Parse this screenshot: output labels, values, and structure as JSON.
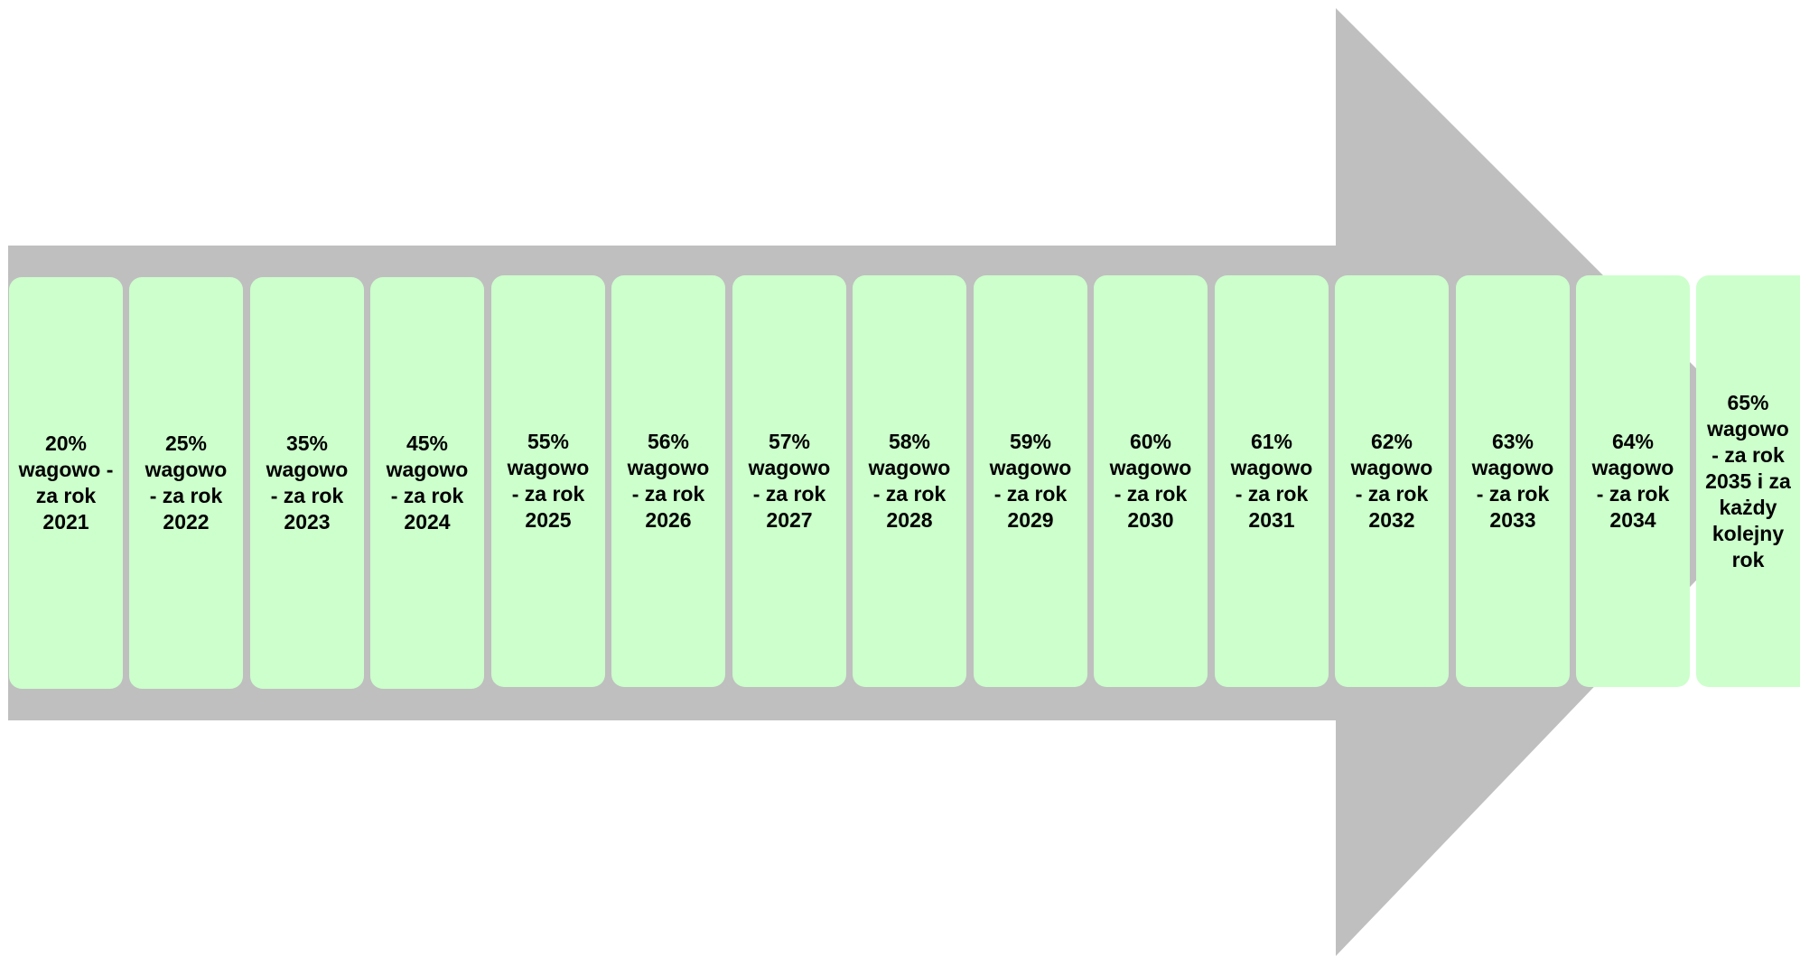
{
  "colors": {
    "arrow": "#bfbfbf",
    "box": "#ccffcc",
    "text": "#000000"
  },
  "steps": [
    {
      "label": "20%\nwagowo -\nza rok\n2021"
    },
    {
      "label": "25%\nwagowo\n- za rok\n2022"
    },
    {
      "label": "35%\nwagowo\n- za rok\n2023"
    },
    {
      "label": "45%\nwagowo\n- za rok\n2024"
    },
    {
      "label": "55%\nwagowo\n- za rok\n2025"
    },
    {
      "label": "56%\nwagowo\n- za rok\n2026"
    },
    {
      "label": "57%\nwagowo\n- za rok\n2027"
    },
    {
      "label": "58%\nwagowo\n- za rok\n2028"
    },
    {
      "label": "59%\nwagowo\n- za rok\n2029"
    },
    {
      "label": "60%\nwagowo\n- za rok\n2030"
    },
    {
      "label": "61%\nwagowo\n- za rok\n2031"
    },
    {
      "label": "62%\nwagowo\n- za rok\n2032"
    },
    {
      "label": "63%\nwagowo\n- za rok\n2033"
    },
    {
      "label": "64%\nwagowo\n- za rok\n2034"
    },
    {
      "label": "65%\nwagowo\n- za rok\n2035 i za\nkażdy\nkolejny\nrok"
    }
  ]
}
